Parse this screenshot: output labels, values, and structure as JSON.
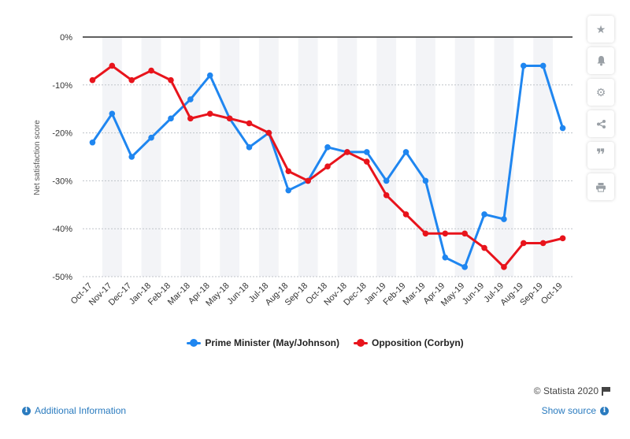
{
  "chart_data": {
    "type": "line",
    "ylabel": "Net satisfaction score",
    "ylim": [
      -50,
      0
    ],
    "yticks": [
      0,
      -10,
      -20,
      -30,
      -40,
      -50
    ],
    "y_tick_suffix": "%",
    "grid": true,
    "legend_position": "bottom",
    "categories": [
      "Oct-17",
      "Nov-17",
      "Dec-17",
      "Jan-18",
      "Feb-18",
      "Mar-18",
      "Apr-18",
      "May-18",
      "Jun-18",
      "Jul-18",
      "Aug-18",
      "Sep-18",
      "Oct-18",
      "Nov-18",
      "Dec-18",
      "Jan-19",
      "Feb-19",
      "Mar-19",
      "Apr-19",
      "May-19",
      "Jun-19",
      "Jul-19",
      "Aug-19",
      "Sep-19",
      "Oct-19"
    ],
    "series": [
      {
        "name": "Prime Minister (May/Johnson)",
        "color": "#1f86f0",
        "values": [
          -22,
          -16,
          -25,
          -21,
          -17,
          -13,
          -8,
          -17,
          -23,
          -20,
          -32,
          -30,
          -23,
          -24,
          -24,
          -30,
          -24,
          -30,
          -46,
          -48,
          -37,
          -38,
          -6,
          -6,
          -19
        ]
      },
      {
        "name": "Opposition (Corbyn)",
        "color": "#e8141c",
        "values": [
          -9,
          -6,
          -9,
          -7,
          -9,
          -17,
          -16,
          -17,
          -18,
          -20,
          -28,
          -30,
          -27,
          -24,
          -26,
          -33,
          -37,
          -41,
          -41,
          -41,
          -44,
          -48,
          -43,
          -43,
          -42
        ]
      }
    ]
  },
  "sidebar": {
    "icons": [
      "star-icon",
      "bell-icon",
      "gear-icon",
      "share-icon",
      "quote-icon",
      "print-icon"
    ]
  },
  "footer": {
    "credits": "© Statista 2020",
    "additional_info": "Additional Information",
    "show_source": "Show source"
  }
}
